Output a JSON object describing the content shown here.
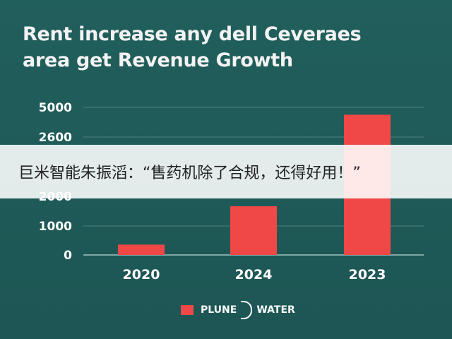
{
  "title_line1": "Rent increase any dell Ceveraes",
  "title_line2": "area get Revenue Growth",
  "legend": {
    "left_text": "PLUNE",
    "right_text": "WATER",
    "swatch_color": "#f04747"
  },
  "banner_text": "巨米智能朱振滔：“售药机除了合规，还得好用！”",
  "chart_data": {
    "type": "bar",
    "title": "Rent increase any dell Ceveraes area get Revenue Growth",
    "categories": [
      "2020",
      "2024",
      "2023"
    ],
    "values": [
      350,
      1650,
      4750
    ],
    "y_ticks": [
      "0",
      "1000",
      "2000",
      "2600",
      "5000"
    ],
    "ylim": [
      0,
      5000
    ],
    "grid": true,
    "bar_color": "#f04747",
    "legend_position": "bottom-center"
  }
}
